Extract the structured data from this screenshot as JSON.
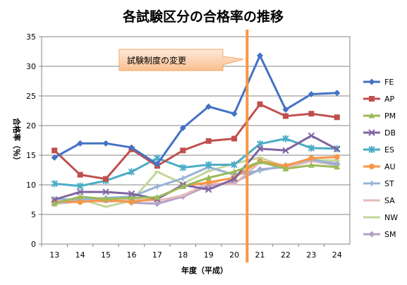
{
  "chart_data": {
    "type": "line",
    "title": "各試験区分の合格率の推移",
    "xlabel": "年度（平成）",
    "ylabel": "合格率（％）",
    "x": [
      13,
      14,
      15,
      16,
      17,
      18,
      19,
      20,
      21,
      22,
      23,
      24
    ],
    "ylim": [
      0,
      35
    ],
    "yticks": [
      0,
      5,
      10,
      15,
      20,
      25,
      30,
      35
    ],
    "grid": true,
    "legend_position": "right",
    "annotation": {
      "text": "試験制度の変更",
      "after_x": 20
    },
    "series": [
      {
        "name": "FE",
        "color": "#4472c4",
        "marker": "diamond",
        "values": [
          14.6,
          17.0,
          17.0,
          16.3,
          13.5,
          19.6,
          23.2,
          22.0,
          31.8,
          22.7,
          25.3,
          25.5
        ]
      },
      {
        "name": "AP",
        "color": "#c0504d",
        "marker": "square",
        "values": [
          15.8,
          11.7,
          11.0,
          16.0,
          13.2,
          15.8,
          17.4,
          17.8,
          23.6,
          21.6,
          22.0,
          21.4
        ]
      },
      {
        "name": "PM",
        "color": "#9bbb59",
        "marker": "triangle",
        "values": [
          6.8,
          8.0,
          7.6,
          7.8,
          7.9,
          9.7,
          11.2,
          12.2,
          13.9,
          12.7,
          13.3,
          13.0
        ]
      },
      {
        "name": "DB",
        "color": "#8064a2",
        "marker": "x",
        "values": [
          7.5,
          8.8,
          8.8,
          8.5,
          7.6,
          10.0,
          9.2,
          11.0,
          16.1,
          15.8,
          18.3,
          16.0
        ]
      },
      {
        "name": "ES",
        "color": "#4bacc6",
        "marker": "star",
        "values": [
          10.2,
          9.8,
          10.7,
          12.2,
          14.5,
          12.9,
          13.4,
          13.4,
          16.9,
          17.8,
          16.2,
          16.1
        ]
      },
      {
        "name": "AU",
        "color": "#f79646",
        "marker": "circle",
        "values": [
          7.2,
          7.1,
          7.4,
          7.1,
          7.7,
          9.8,
          10.4,
          11.2,
          14.0,
          13.2,
          14.5,
          14.7
        ]
      },
      {
        "name": "ST",
        "color": "#95b3d7",
        "marker": "plus",
        "values": [
          7.6,
          7.5,
          7.8,
          8.0,
          9.7,
          11.1,
          13.0,
          11.7,
          12.4,
          13.3,
          14.3,
          13.4
        ]
      },
      {
        "name": "SA",
        "color": "#e6b9b8",
        "marker": "dash",
        "values": [
          6.7,
          7.6,
          7.1,
          7.5,
          7.3,
          8.2,
          10.3,
          10.1,
          13.8,
          12.9,
          14.0,
          13.3
        ]
      },
      {
        "name": "NW",
        "color": "#c3d69b",
        "marker": "dash",
        "values": [
          7.0,
          7.6,
          6.3,
          7.3,
          12.2,
          10.2,
          12.3,
          13.6,
          14.6,
          13.0,
          14.2,
          14.1
        ]
      },
      {
        "name": "SM",
        "color": "#b3a2c7",
        "marker": "diamond",
        "values": [
          6.8,
          7.2,
          7.7,
          7.0,
          6.8,
          8.0,
          9.9,
          10.4,
          12.6,
          13.0,
          14.2,
          13.6
        ]
      }
    ]
  }
}
